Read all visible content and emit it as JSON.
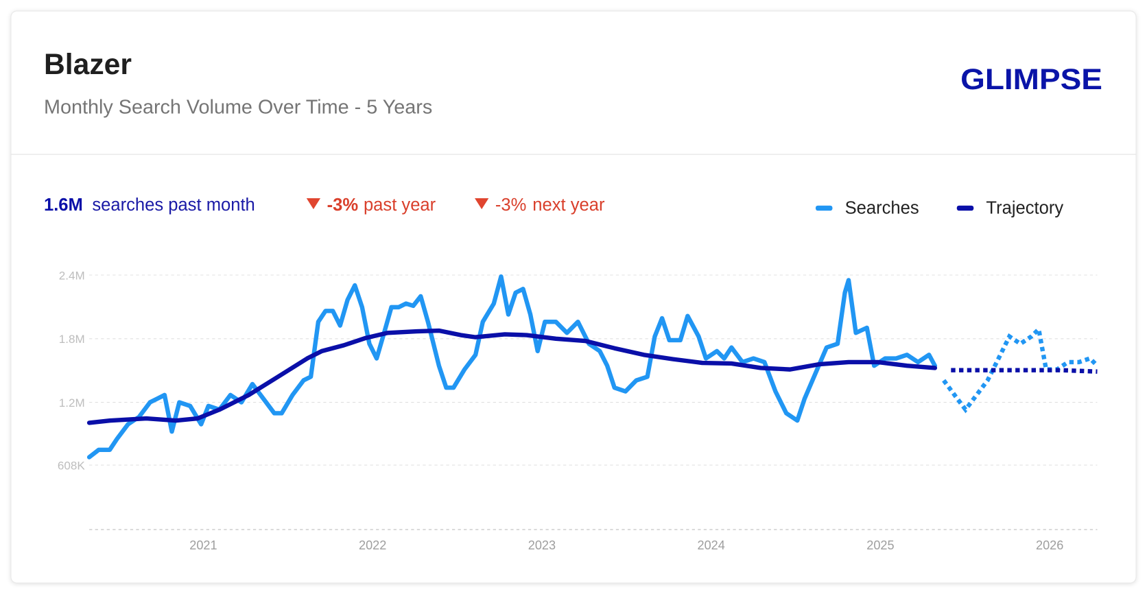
{
  "header": {
    "title": "Blazer",
    "subtitle": "Monthly Search Volume Over Time - 5 Years",
    "logo": "GLIMPSE"
  },
  "summary": {
    "volume": "1.6M",
    "volume_label": "searches past month",
    "past_change": "-3%",
    "past_label": "past year",
    "next_change": "-3%",
    "next_label": "next year"
  },
  "chart_data": {
    "type": "line",
    "xlim": [
      2020.326,
      2026.281
    ],
    "xticks": [
      2021,
      2022,
      2023,
      2024,
      2025,
      2026
    ],
    "ylim": [
      0,
      2400000
    ],
    "yticks": [
      {
        "value": 608000,
        "label": "608K"
      },
      {
        "value": 1200000,
        "label": "1.2M"
      },
      {
        "value": 1800000,
        "label": "1.8M"
      },
      {
        "value": 2400000,
        "label": "2.4M"
      }
    ],
    "grid": true,
    "series": [
      {
        "name": "Searches",
        "color": "#2196f3",
        "x": [
          2020.326,
          2020.382,
          2020.447,
          2020.49,
          2020.555,
          2020.62,
          2020.685,
          2020.728,
          2020.771,
          2020.814,
          2020.858,
          2020.922,
          2020.987,
          2021.03,
          2021.095,
          2021.16,
          2021.225,
          2021.29,
          2021.355,
          2021.419,
          2021.463,
          2021.527,
          2021.592,
          2021.635,
          2021.679,
          2021.722,
          2021.765,
          2021.808,
          2021.852,
          2021.895,
          2021.938,
          2021.981,
          2022.024,
          2022.068,
          2022.111,
          2022.154,
          2022.197,
          2022.24,
          2022.284,
          2022.327,
          2022.392,
          2022.435,
          2022.478,
          2022.543,
          2022.608,
          2022.651,
          2022.716,
          2022.759,
          2022.802,
          2022.845,
          2022.889,
          2022.932,
          2022.975,
          2023.018,
          2023.083,
          2023.148,
          2023.213,
          2023.278,
          2023.342,
          2023.386,
          2023.429,
          2023.494,
          2023.558,
          2023.623,
          2023.667,
          2023.71,
          2023.753,
          2023.818,
          2023.861,
          2023.926,
          2023.969,
          2024.034,
          2024.077,
          2024.12,
          2024.185,
          2024.25,
          2024.315,
          2024.38,
          2024.444,
          2024.509,
          2024.552,
          2024.617,
          2024.682,
          2024.747,
          2024.79,
          2024.812,
          2024.855,
          2024.92,
          2024.963,
          2025.028,
          2025.093,
          2025.157,
          2025.222,
          2025.287,
          2025.322
        ],
        "values": [
          683000,
          752000,
          752000,
          855000,
          993000,
          1062000,
          1200000,
          1234000,
          1269000,
          924000,
          1200000,
          1166000,
          993000,
          1166000,
          1131000,
          1269000,
          1200000,
          1372000,
          1234000,
          1097000,
          1097000,
          1269000,
          1407000,
          1441000,
          1959000,
          2062000,
          2062000,
          1924000,
          2166000,
          2303000,
          2097000,
          1752000,
          1614000,
          1855000,
          2097000,
          2097000,
          2131000,
          2110000,
          2200000,
          1959000,
          1545000,
          1338000,
          1338000,
          1510000,
          1648000,
          1959000,
          2131000,
          2386000,
          2028000,
          2234000,
          2269000,
          2028000,
          1683000,
          1959000,
          1959000,
          1855000,
          1959000,
          1752000,
          1683000,
          1545000,
          1338000,
          1303000,
          1407000,
          1441000,
          1821000,
          1993000,
          1786000,
          1786000,
          2014000,
          1821000,
          1614000,
          1683000,
          1614000,
          1717000,
          1579000,
          1614000,
          1579000,
          1303000,
          1097000,
          1028000,
          1234000,
          1476000,
          1717000,
          1752000,
          2234000,
          2352000,
          1855000,
          1903000,
          1545000,
          1614000,
          1614000,
          1648000,
          1579000,
          1648000,
          1545000
        ],
        "forecast": {
          "x": [
            2025.374,
            2025.438,
            2025.503,
            2025.568,
            2025.633,
            2025.698,
            2025.762,
            2025.827,
            2025.892,
            2025.935,
            2025.979,
            2026.044,
            2026.108,
            2026.173,
            2026.238,
            2026.281
          ],
          "values": [
            1407000,
            1269000,
            1131000,
            1269000,
            1407000,
            1614000,
            1821000,
            1752000,
            1821000,
            1890000,
            1510000,
            1510000,
            1579000,
            1579000,
            1614000,
            1545000
          ]
        }
      },
      {
        "name": "Trajectory",
        "color": "#0a0fa8",
        "x": [
          2020.326,
          2020.447,
          2020.663,
          2020.836,
          2020.966,
          2021.095,
          2021.268,
          2021.441,
          2021.614,
          2021.7,
          2021.83,
          2021.96,
          2022.089,
          2022.262,
          2022.392,
          2022.521,
          2022.608,
          2022.781,
          2022.91,
          2023.083,
          2023.256,
          2023.429,
          2023.602,
          2023.775,
          2023.947,
          2024.12,
          2024.293,
          2024.466,
          2024.639,
          2024.812,
          2024.985,
          2025.157,
          2025.322
        ],
        "values": [
          1007000,
          1028000,
          1048000,
          1028000,
          1048000,
          1131000,
          1269000,
          1441000,
          1614000,
          1683000,
          1738000,
          1807000,
          1855000,
          1869000,
          1876000,
          1834000,
          1814000,
          1841000,
          1834000,
          1800000,
          1779000,
          1710000,
          1648000,
          1607000,
          1572000,
          1566000,
          1524000,
          1510000,
          1559000,
          1579000,
          1579000,
          1545000,
          1524000
        ],
        "forecast": {
          "x": [
            2025.417,
            2025.849,
            2026.065,
            2026.281
          ],
          "values": [
            1503000,
            1503000,
            1503000,
            1490000
          ]
        }
      }
    ]
  }
}
